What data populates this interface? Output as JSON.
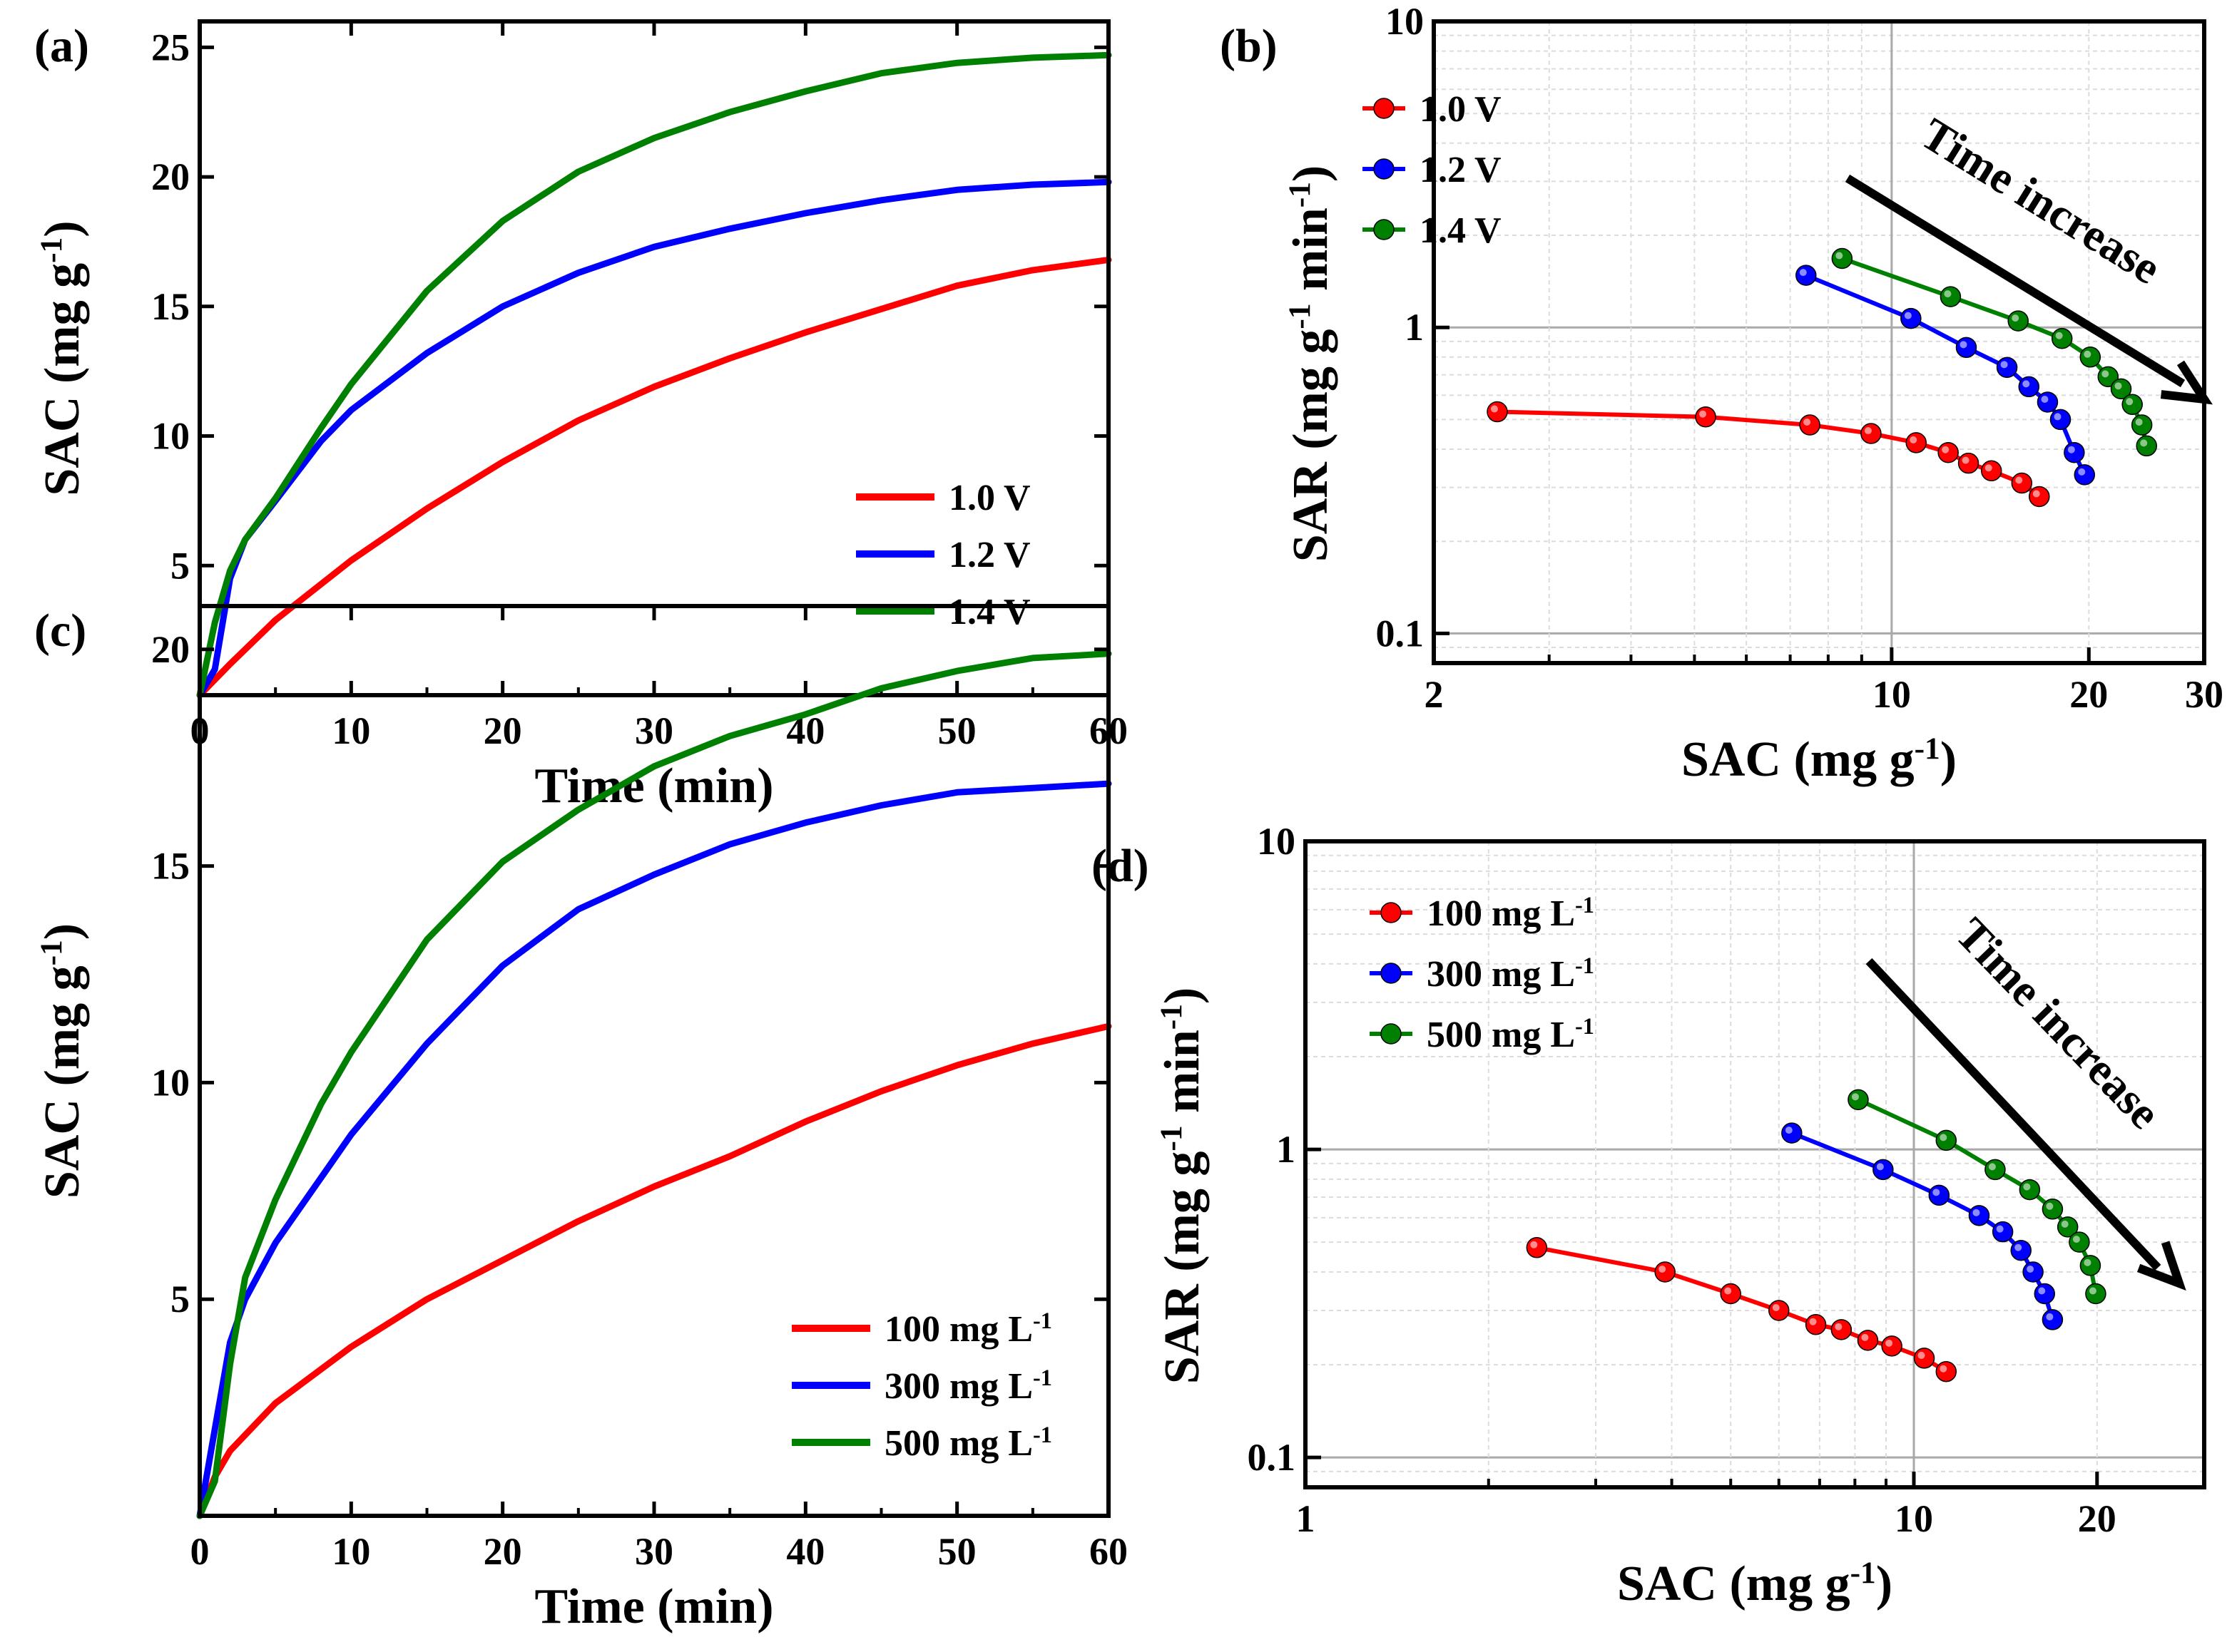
{
  "chart_data": [
    {
      "panel": "(a)",
      "type": "line",
      "xlabel": "Time (min)",
      "ylabel": "SAC (mg g",
      "ylabel_sup": "-1",
      "ylabel_end": ")",
      "xlim": [
        0,
        60
      ],
      "ylim": [
        0,
        26
      ],
      "xticks": [
        0,
        10,
        20,
        30,
        40,
        50,
        60
      ],
      "yticks": [
        5,
        10,
        15,
        20,
        25
      ],
      "series": [
        {
          "name": "1.0 V",
          "color": "#ff0000",
          "x": [
            0,
            2,
            5,
            10,
            15,
            20,
            25,
            30,
            35,
            40,
            45,
            50,
            55,
            60
          ],
          "y": [
            0,
            1.2,
            2.9,
            5.2,
            7.2,
            9.0,
            10.6,
            11.9,
            13.0,
            14.0,
            14.9,
            15.8,
            16.4,
            16.8
          ]
        },
        {
          "name": "1.2 V",
          "color": "#0000ff",
          "x": [
            0,
            1,
            2,
            3,
            5,
            8,
            10,
            15,
            20,
            25,
            30,
            35,
            40,
            45,
            50,
            55,
            60
          ],
          "y": [
            0,
            1.0,
            4.5,
            6.0,
            7.5,
            9.8,
            11.0,
            13.2,
            15.0,
            16.3,
            17.3,
            18.0,
            18.6,
            19.1,
            19.5,
            19.7,
            19.8
          ]
        },
        {
          "name": "1.4 V",
          "color": "#008000",
          "x": [
            0,
            1,
            2,
            3,
            5,
            8,
            10,
            15,
            20,
            25,
            30,
            35,
            40,
            45,
            50,
            55,
            60
          ],
          "y": [
            0,
            2.8,
            4.8,
            6.0,
            7.6,
            10.3,
            12.0,
            15.6,
            18.3,
            20.2,
            21.5,
            22.5,
            23.3,
            24.0,
            24.4,
            24.6,
            24.7
          ]
        }
      ]
    },
    {
      "panel": "(b)",
      "type": "scatter",
      "scale": "log-log",
      "xlabel": "SAC (mg g",
      "xlabel_sup": "-1",
      "xlabel_end": ")",
      "ylabel": "SAR (mg  g",
      "ylabel_sup1": "-1",
      "ylabel_mid": " min",
      "ylabel_sup2": "-1",
      "ylabel_end": ")",
      "xlim": [
        2,
        30
      ],
      "ylim": [
        0.08,
        10
      ],
      "xticks": [
        2,
        10,
        20,
        30
      ],
      "yticks": [
        0.1,
        1,
        10
      ],
      "annotation": "Time  increase",
      "series": [
        {
          "name": "1.0 V",
          "color": "#ff0000",
          "x": [
            2.5,
            5.2,
            7.5,
            9.3,
            10.9,
            12.2,
            13.1,
            14.2,
            15.8,
            16.8
          ],
          "y": [
            0.53,
            0.51,
            0.48,
            0.45,
            0.42,
            0.39,
            0.36,
            0.34,
            0.31,
            0.28
          ]
        },
        {
          "name": "1.2 V",
          "color": "#0000ff",
          "x": [
            7.4,
            10.7,
            13.0,
            15.0,
            16.2,
            17.3,
            18.1,
            19.0,
            19.7
          ],
          "y": [
            1.48,
            1.07,
            0.86,
            0.74,
            0.64,
            0.57,
            0.5,
            0.39,
            0.33
          ]
        },
        {
          "name": "1.4 V",
          "color": "#008000",
          "x": [
            8.4,
            12.3,
            15.6,
            18.2,
            20.1,
            21.4,
            22.4,
            23.3,
            24.1,
            24.5
          ],
          "y": [
            1.68,
            1.26,
            1.05,
            0.92,
            0.8,
            0.69,
            0.63,
            0.56,
            0.48,
            0.41
          ]
        }
      ]
    },
    {
      "panel": "(c)",
      "type": "line",
      "xlabel": "Time (min)",
      "ylabel": "SAC (mg g",
      "ylabel_sup": "-1",
      "ylabel_end": ")",
      "xlim": [
        0,
        60
      ],
      "ylim": [
        0,
        21
      ],
      "xticks": [
        0,
        10,
        20,
        30,
        40,
        50,
        60
      ],
      "yticks": [
        5,
        10,
        15,
        20
      ],
      "series": [
        {
          "name": "100 mg L",
          "sup": "-1",
          "color": "#ff0000",
          "x": [
            0,
            1,
            2,
            5,
            10,
            15,
            20,
            25,
            30,
            35,
            40,
            45,
            50,
            55,
            60
          ],
          "y": [
            0,
            0.9,
            1.5,
            2.6,
            3.9,
            5.0,
            5.9,
            6.8,
            7.6,
            8.3,
            9.1,
            9.8,
            10.4,
            10.9,
            11.3
          ]
        },
        {
          "name": "300 mg L",
          "sup": "-1",
          "color": "#0000ff",
          "x": [
            0,
            1,
            2,
            3,
            5,
            8,
            10,
            15,
            20,
            25,
            30,
            35,
            40,
            45,
            50,
            55,
            60
          ],
          "y": [
            0,
            2.0,
            4.0,
            5.0,
            6.3,
            7.8,
            8.8,
            10.9,
            12.7,
            14.0,
            14.8,
            15.5,
            16.0,
            16.4,
            16.7,
            16.8,
            16.9
          ]
        },
        {
          "name": "500 mg L",
          "sup": "-1",
          "color": "#008000",
          "x": [
            0,
            1,
            2,
            3,
            5,
            8,
            10,
            15,
            20,
            25,
            30,
            35,
            40,
            45,
            50,
            55,
            60
          ],
          "y": [
            0,
            0.8,
            3.5,
            5.5,
            7.3,
            9.5,
            10.7,
            13.3,
            15.1,
            16.3,
            17.3,
            18.0,
            18.5,
            19.1,
            19.5,
            19.8,
            19.9
          ]
        }
      ]
    },
    {
      "panel": "(d)",
      "type": "scatter",
      "scale": "log-log",
      "xlabel": "SAC (mg g",
      "xlabel_sup": "-1",
      "xlabel_end": ")",
      "ylabel": "SAR (mg  g",
      "ylabel_sup1": "-1",
      "ylabel_mid": " min",
      "ylabel_sup2": "-1",
      "ylabel_end": ")",
      "xlim": [
        1,
        30
      ],
      "ylim": [
        0.08,
        10
      ],
      "xticks": [
        1,
        10,
        20
      ],
      "yticks": [
        0.1,
        1,
        10
      ],
      "annotation": "Time  increase",
      "series": [
        {
          "name": "100 mg L",
          "sup": "-1",
          "color": "#ff0000",
          "x": [
            2.4,
            3.9,
            5.0,
            6.0,
            6.9,
            7.6,
            8.4,
            9.2,
            10.4,
            11.3
          ],
          "y": [
            0.48,
            0.4,
            0.34,
            0.3,
            0.27,
            0.26,
            0.24,
            0.23,
            0.21,
            0.19
          ]
        },
        {
          "name": "300 mg L",
          "sup": "-1",
          "color": "#0000ff",
          "x": [
            6.3,
            8.9,
            11.0,
            12.8,
            14.0,
            15.0,
            15.7,
            16.4,
            16.9
          ],
          "y": [
            1.13,
            0.86,
            0.71,
            0.61,
            0.54,
            0.47,
            0.4,
            0.34,
            0.28
          ]
        },
        {
          "name": "500 mg L",
          "sup": "-1",
          "color": "#008000",
          "x": [
            8.1,
            11.3,
            13.6,
            15.5,
            16.9,
            17.9,
            18.7,
            19.5,
            19.9
          ],
          "y": [
            1.45,
            1.07,
            0.86,
            0.74,
            0.64,
            0.56,
            0.5,
            0.42,
            0.34
          ]
        }
      ]
    }
  ]
}
